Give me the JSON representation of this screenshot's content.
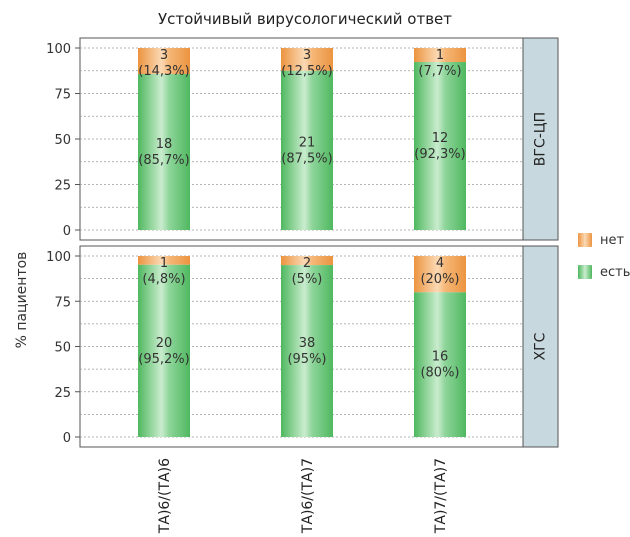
{
  "chart_data": {
    "type": "bar",
    "stacked": true,
    "title": "Устойчивый вирусологический ответ",
    "ylabel": "% пациентов",
    "ylim": [
      0,
      100
    ],
    "yticks": [
      0,
      25,
      50,
      75,
      100
    ],
    "categories": [
      "ТА)6/(ТА)6",
      "ТА)6/(ТА)7",
      "ТА)7/(ТА)7"
    ],
    "legend": [
      {
        "name": "нет",
        "color": "#f0a050"
      },
      {
        "name": "есть",
        "color": "#5cbf6a"
      }
    ],
    "panels": [
      {
        "label": "ВГС-ЦП",
        "series": [
          {
            "name": "есть",
            "values": [
              85.7,
              87.5,
              92.3
            ],
            "labels": [
              [
                "18",
                "(85,7%)"
              ],
              [
                "21",
                "(87,5%)"
              ],
              [
                "12",
                "(92,3%)"
              ]
            ]
          },
          {
            "name": "нет",
            "values": [
              14.3,
              12.5,
              7.7
            ],
            "labels": [
              [
                "3",
                "(14,3%)"
              ],
              [
                "3",
                "(12,5%)"
              ],
              [
                "1",
                "(7,7%)"
              ]
            ]
          }
        ]
      },
      {
        "label": "ХГС",
        "series": [
          {
            "name": "есть",
            "values": [
              95.2,
              95,
              80
            ],
            "labels": [
              [
                "20",
                "(95,2%)"
              ],
              [
                "38",
                "(95%)"
              ],
              [
                "16",
                "(80%)"
              ]
            ]
          },
          {
            "name": "нет",
            "values": [
              4.8,
              5,
              20
            ],
            "labels": [
              [
                "1",
                "(4,8%)"
              ],
              [
                "2",
                "(5%)"
              ],
              [
                "4",
                "(20%)"
              ]
            ]
          }
        ]
      }
    ]
  }
}
